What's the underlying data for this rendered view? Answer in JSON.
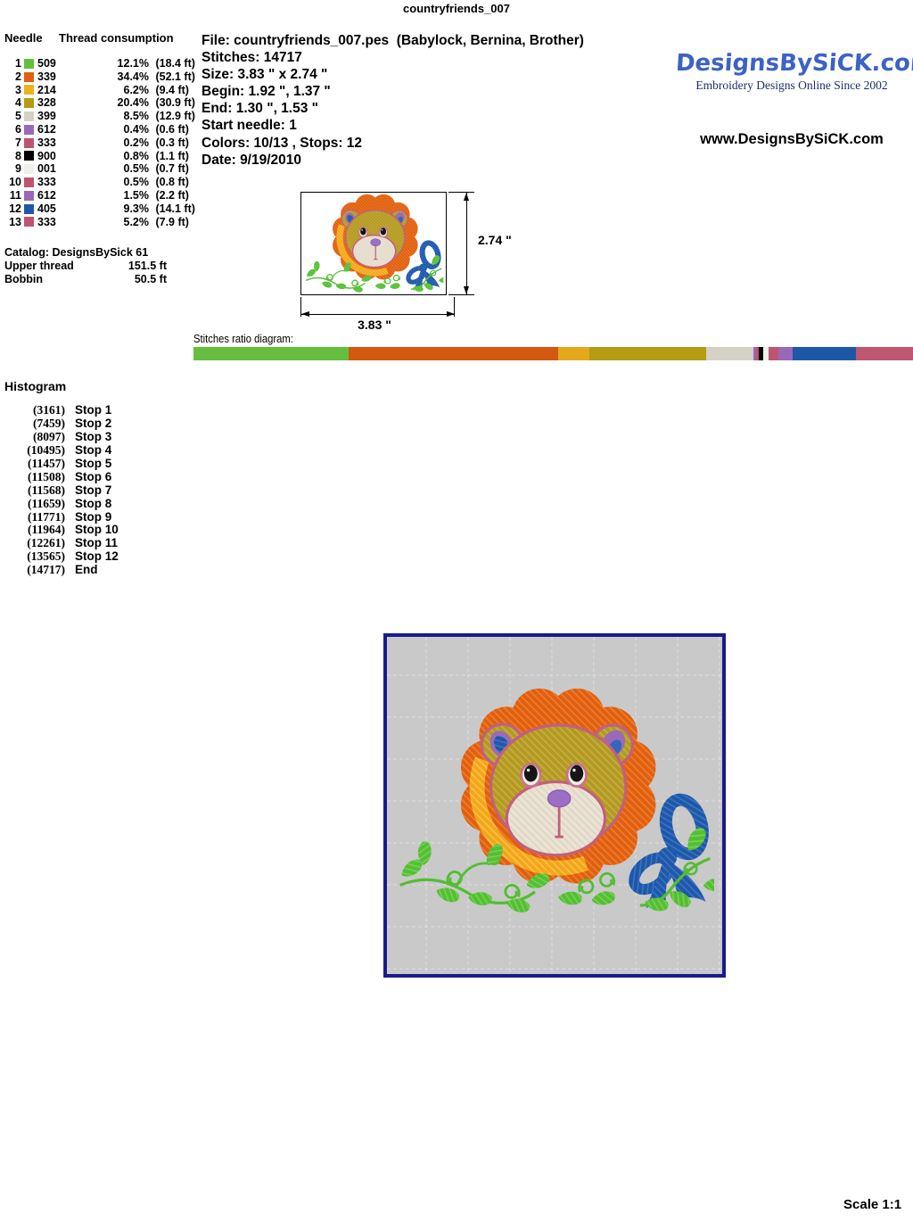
{
  "page_title": "countryfriends_007",
  "needle_panel": {
    "header_needle": "Needle",
    "header_thread": "Thread consumption",
    "rows": [
      {
        "num": "1",
        "code": "509",
        "color": "#66be3e",
        "pct": "12.1%",
        "len": "(18.4 ft)"
      },
      {
        "num": "2",
        "code": "339",
        "color": "#e06010",
        "pct": "34.4%",
        "len": "(52.1 ft)"
      },
      {
        "num": "3",
        "code": "214",
        "color": "#ebb41e",
        "pct": "6.2%",
        "len": "(9.4 ft)"
      },
      {
        "num": "4",
        "code": "328",
        "color": "#b59b12",
        "pct": "20.4%",
        "len": "(30.9 ft)"
      },
      {
        "num": "5",
        "code": "399",
        "color": "#d5d1c5",
        "pct": "8.5%",
        "len": "(12.9 ft)"
      },
      {
        "num": "6",
        "code": "612",
        "color": "#9a68b8",
        "pct": "0.4%",
        "len": "(0.6 ft)"
      },
      {
        "num": "7",
        "code": "333",
        "color": "#be5470",
        "pct": "0.2%",
        "len": "(0.3 ft)"
      },
      {
        "num": "8",
        "code": "900",
        "color": "#000000",
        "pct": "0.8%",
        "len": "(1.1 ft)"
      },
      {
        "num": "9",
        "code": "001",
        "color": "#f0efea",
        "pct": "0.5%",
        "len": "(0.7 ft)"
      },
      {
        "num": "10",
        "code": "333",
        "color": "#be5470",
        "pct": "0.5%",
        "len": "(0.8 ft)"
      },
      {
        "num": "11",
        "code": "612",
        "color": "#9a68b8",
        "pct": "1.5%",
        "len": "(2.2 ft)"
      },
      {
        "num": "12",
        "code": "405",
        "color": "#1f57a8",
        "pct": "9.3%",
        "len": "(14.1 ft)"
      },
      {
        "num": "13",
        "code": "333",
        "color": "#be5470",
        "pct": "5.2%",
        "len": "(7.9 ft)"
      }
    ],
    "catalog_label": "Catalog: DesignsBySick 61",
    "upper_thread_label": "Upper thread",
    "upper_thread_value": "151.5 ft",
    "bobbin_label": "Bobbin",
    "bobbin_value": "50.5 ft"
  },
  "info": {
    "lines": [
      "File: countryfriends_007.pes  (Babylock, Bernina, Brother)",
      "Stitches: 14717",
      "Size: 3.83 \" x 2.74 \"",
      "Begin: 1.92 \", 1.37 \"",
      "End: 1.30 \", 1.53 \"",
      "Start needle: 1",
      "Colors: 10/13 , Stops: 12",
      "Date: 9/19/2010"
    ]
  },
  "logo": {
    "brand": "DesignsBySiCK.com",
    "brand_color": "#3c63c4",
    "tagline": "Embroidery Designs Online Since 2002",
    "website": "www.DesignsBySiCK.com"
  },
  "preview": {
    "height_label": "2.74 \"",
    "width_label": "3.83 \""
  },
  "ratio": {
    "label": "Stitches ratio diagram:",
    "segments": [
      {
        "needle": "1",
        "color": "#66be3e",
        "pct": 21.5
      },
      {
        "needle": "2",
        "color": "#d2590e",
        "pct": 29.2
      },
      {
        "needle": "3",
        "color": "#e3a91b",
        "pct": 4.3
      },
      {
        "needle": "4",
        "color": "#b59b12",
        "pct": 16.3
      },
      {
        "needle": "5",
        "color": "#d5d1c5",
        "pct": 6.5
      },
      {
        "needle": "6",
        "color": "#9a68b8",
        "pct": 0.35
      },
      {
        "needle": "7",
        "color": "#be5470",
        "pct": 0.4
      },
      {
        "needle": "8",
        "color": "#000000",
        "pct": 0.62
      },
      {
        "needle": "9",
        "color": "#f0efea",
        "pct": 0.76
      },
      {
        "needle": "10",
        "color": "#be5470",
        "pct": 1.3
      },
      {
        "needle": "11",
        "color": "#9a68b8",
        "pct": 2.0
      },
      {
        "needle": "12",
        "color": "#1f57a8",
        "pct": 8.86
      },
      {
        "needle": "13",
        "color": "#bf5672",
        "pct": 7.9
      }
    ]
  },
  "histogram": {
    "title": "Histogram",
    "entries": [
      {
        "count": "(3161)",
        "label": "Stop 1"
      },
      {
        "count": "(7459)",
        "label": "Stop 2"
      },
      {
        "count": "(8097)",
        "label": "Stop 3"
      },
      {
        "count": "(10495)",
        "label": "Stop 4"
      },
      {
        "count": "(11457)",
        "label": "Stop 5"
      },
      {
        "count": "(11508)",
        "label": "Stop 6"
      },
      {
        "count": "(11568)",
        "label": "Stop 7"
      },
      {
        "count": "(11659)",
        "label": "Stop 8"
      },
      {
        "count": "(11771)",
        "label": "Stop 9"
      },
      {
        "count": "(11964)",
        "label": "Stop 10"
      },
      {
        "count": "(12261)",
        "label": "Stop 11"
      },
      {
        "count": "(13565)",
        "label": "Stop 12"
      },
      {
        "count": "(14717)",
        "label": "End"
      }
    ]
  },
  "scale_label": "Scale 1:1"
}
